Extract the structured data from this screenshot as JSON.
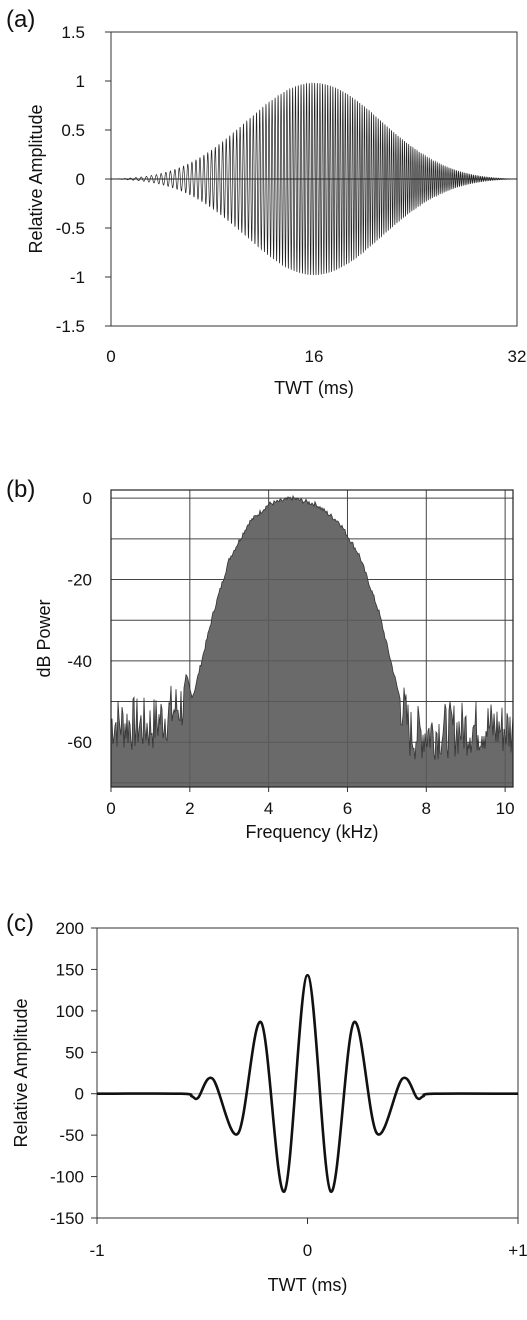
{
  "chart_data": [
    {
      "panel": "(a)",
      "type": "line",
      "xlabel": "TWT (ms)",
      "ylabel": "Relative Amplitude",
      "xlim": [
        0,
        32
      ],
      "ylim": [
        -1.5,
        1.5
      ],
      "xticks": [
        {
          "v": 0,
          "label": "0"
        },
        {
          "v": 16,
          "label": "16"
        },
        {
          "v": 32,
          "label": "32"
        }
      ],
      "yticks": [
        {
          "v": 1.5,
          "label": "1.5"
        },
        {
          "v": 1,
          "label": "1"
        },
        {
          "v": 0.5,
          "label": "0.5"
        },
        {
          "v": 0,
          "label": "0"
        },
        {
          "v": -0.5,
          "label": "-0.5"
        },
        {
          "v": -1,
          "label": "-1"
        },
        {
          "v": -1.5,
          "label": "-1.5"
        }
      ],
      "grid": false,
      "series": [
        {
          "description_values": "chirp sweep, Gaussian-like envelope",
          "envelope_peak_time_ms": 16,
          "peak_amplitude": 0.98,
          "start_ms": 0,
          "end_ms": 32,
          "freq_start_khz": 2,
          "freq_end_khz": 7.5
        }
      ]
    },
    {
      "panel": "(b)",
      "type": "area",
      "xlabel": "Frequency (kHz)",
      "ylabel": "dB Power",
      "xlim": [
        0,
        10.2
      ],
      "ylim": [
        -71,
        2
      ],
      "xticks": [
        {
          "v": 0,
          "label": "0"
        },
        {
          "v": 2,
          "label": "2"
        },
        {
          "v": 4,
          "label": "4"
        },
        {
          "v": 6,
          "label": "6"
        },
        {
          "v": 8,
          "label": "8"
        },
        {
          "v": 10,
          "label": "10"
        }
      ],
      "yticks": [
        {
          "v": 0,
          "label": "0"
        },
        {
          "v": -20,
          "label": "-20"
        },
        {
          "v": -40,
          "label": "-40"
        },
        {
          "v": -60,
          "label": "-60"
        }
      ],
      "grid": true,
      "series": [
        {
          "x": [
            0,
            1,
            1.9,
            2.1,
            2.3,
            2.6,
            3.0,
            3.5,
            4.0,
            4.6,
            5.2,
            5.8,
            6.3,
            6.8,
            7.1,
            7.3,
            7.6,
            8.5,
            9.5,
            10.2
          ],
          "y": [
            -55,
            -56,
            -50,
            -48,
            -40,
            -28,
            -15,
            -6,
            -1.5,
            0,
            -1.5,
            -6,
            -14,
            -28,
            -40,
            -48,
            -58,
            -57,
            -56,
            -57
          ]
        }
      ]
    },
    {
      "panel": "(c)",
      "type": "line",
      "xlabel": "TWT (ms)",
      "ylabel": "Relative Amplitude",
      "xlim": [
        -1,
        1
      ],
      "ylim": [
        -150,
        200
      ],
      "xticks": [
        {
          "v": -1,
          "label": "-1"
        },
        {
          "v": 0,
          "label": "0"
        },
        {
          "v": 1,
          "label": "+1"
        }
      ],
      "yticks": [
        {
          "v": 200,
          "label": "200"
        },
        {
          "v": 150,
          "label": "150"
        },
        {
          "v": 100,
          "label": "100"
        },
        {
          "v": 50,
          "label": "50"
        },
        {
          "v": 0,
          "label": "0"
        },
        {
          "v": -50,
          "label": "-50"
        },
        {
          "v": -100,
          "label": "-100"
        },
        {
          "v": -150,
          "label": "-150"
        }
      ],
      "grid": false,
      "series": [
        {
          "x": [
            -1.0,
            -0.6,
            -0.55,
            -0.52,
            -0.45,
            -0.33,
            -0.22,
            -0.11,
            0.0,
            0.11,
            0.22,
            0.33,
            0.45,
            0.52,
            0.55,
            0.6,
            1.0
          ],
          "y": [
            0,
            0,
            -3,
            -5,
            18,
            -48,
            86,
            -118,
            143,
            -118,
            86,
            -48,
            18,
            -5,
            -3,
            0,
            0
          ]
        }
      ]
    }
  ]
}
